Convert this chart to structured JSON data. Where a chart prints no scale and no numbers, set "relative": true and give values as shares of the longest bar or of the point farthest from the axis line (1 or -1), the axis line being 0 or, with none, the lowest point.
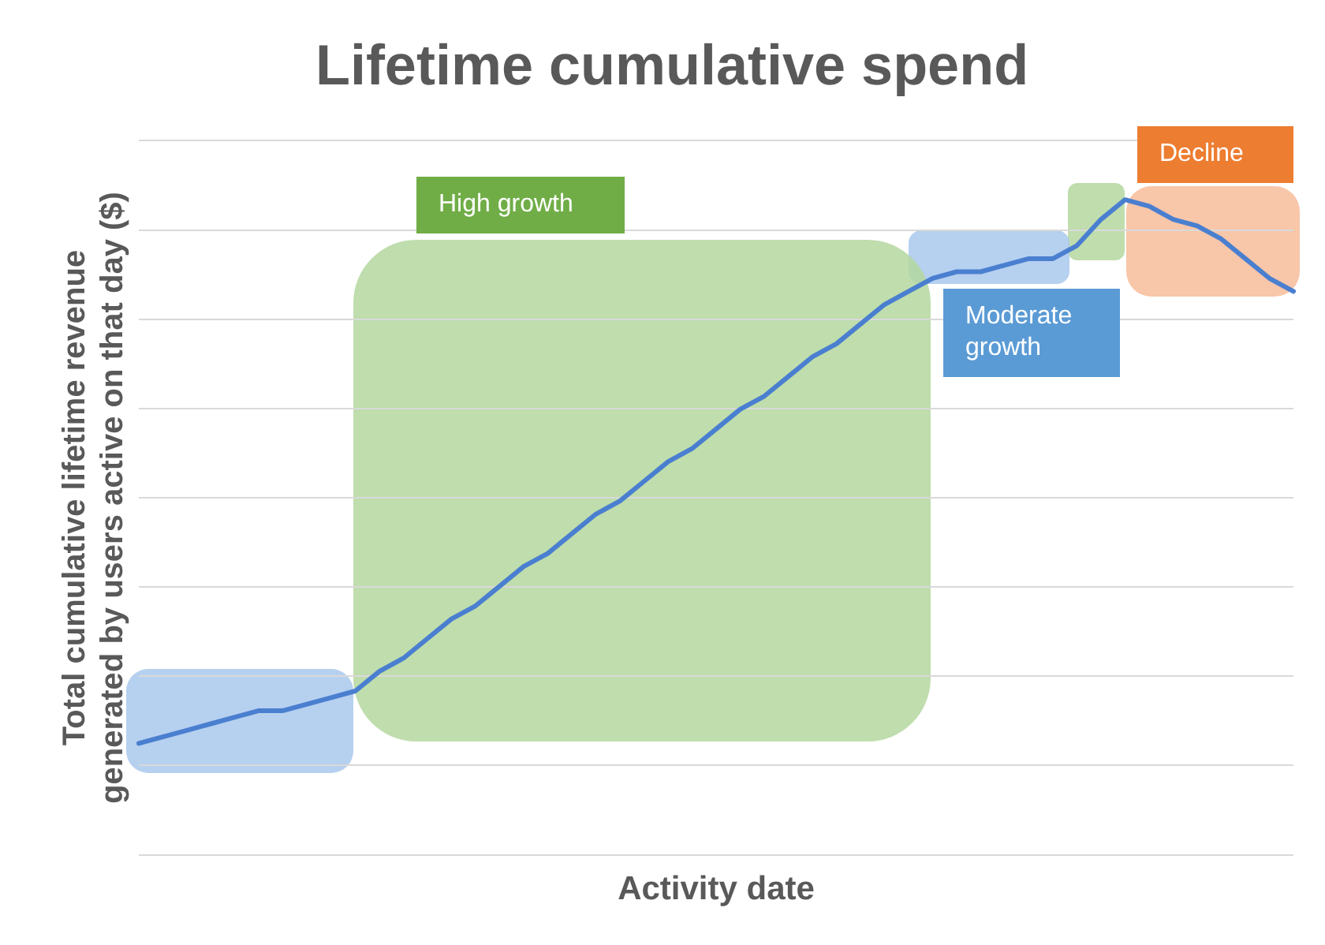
{
  "chart_data": {
    "type": "line",
    "title": "Lifetime cumulative spend",
    "xlabel": "Activity date",
    "ylabel": "Total cumulative lifetime revenue generated by users active on that day ($)",
    "relative": true,
    "grid": "y",
    "legend": false,
    "marker": "none",
    "line_style": "solid",
    "annotations": [
      "High growth",
      "Moderate growth",
      "Decline"
    ],
    "categories": [
      null,
      null,
      null,
      null,
      null,
      null,
      null,
      null,
      null,
      null,
      null,
      null,
      null,
      null,
      null,
      null,
      null,
      null,
      null,
      null,
      null,
      null,
      null,
      null,
      null,
      null,
      null,
      null,
      null,
      null,
      null,
      null,
      null,
      null,
      null,
      null,
      null,
      null,
      null,
      null,
      null,
      null,
      null,
      null,
      null,
      null,
      null,
      null,
      null
    ],
    "series": [
      {
        "color": "#4a7fd0",
        "values": [
          0.17,
          0.18,
          0.19,
          0.2,
          0.21,
          0.22,
          0.22,
          0.23,
          0.24,
          0.25,
          0.28,
          0.3,
          0.33,
          0.36,
          0.38,
          0.41,
          0.44,
          0.46,
          0.49,
          0.52,
          0.54,
          0.57,
          0.6,
          0.62,
          0.65,
          0.68,
          0.7,
          0.73,
          0.76,
          0.78,
          0.81,
          0.84,
          0.86,
          0.88,
          0.89,
          0.89,
          0.9,
          0.91,
          0.91,
          0.93,
          0.97,
          1,
          0.99,
          0.97,
          0.96,
          0.94,
          0.91,
          0.88,
          0.86
        ]
      }
    ]
  }
}
